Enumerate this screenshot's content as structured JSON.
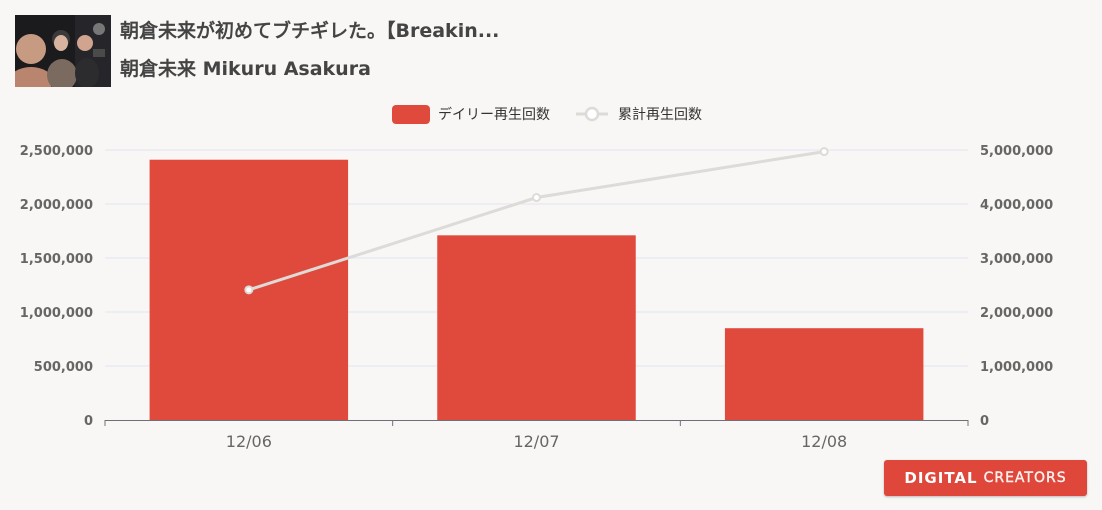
{
  "header": {
    "title": "朝倉未来が初めてブチギレた。【Breakin...",
    "channel": "朝倉未来 Mikuru Asakura"
  },
  "logo": {
    "word1": "DIGITAL",
    "word2": "CREATORS"
  },
  "colors": {
    "bar": "#e04a3d",
    "line": "#dddbd8",
    "axis_text": "#666666",
    "grid": "#e0e6f1",
    "logo_bg": "#de473a"
  },
  "chart_data": {
    "type": "bar",
    "categories": [
      "12/06",
      "12/07",
      "12/08"
    ],
    "series": [
      {
        "name": "デイリー再生回数",
        "type": "bar",
        "axis": "left",
        "values": [
          2410000,
          1710000,
          850000
        ]
      },
      {
        "name": "累計再生回数",
        "type": "line",
        "axis": "right",
        "values": [
          2410000,
          4120000,
          4970000
        ]
      }
    ],
    "y_left": {
      "min": 0,
      "max": 2500000,
      "ticks": [
        0,
        500000,
        1000000,
        1500000,
        2000000,
        2500000
      ],
      "tick_labels": [
        "0",
        "500,000",
        "1,000,000",
        "1,500,000",
        "2,000,000",
        "2,500,000"
      ]
    },
    "y_right": {
      "min": 0,
      "max": 5000000,
      "ticks": [
        0,
        1000000,
        2000000,
        3000000,
        4000000,
        5000000
      ],
      "tick_labels": [
        "0",
        "1,000,000",
        "2,000,000",
        "3,000,000",
        "4,000,000",
        "5,000,000"
      ]
    },
    "legend_position": "top-center",
    "grid": true
  }
}
